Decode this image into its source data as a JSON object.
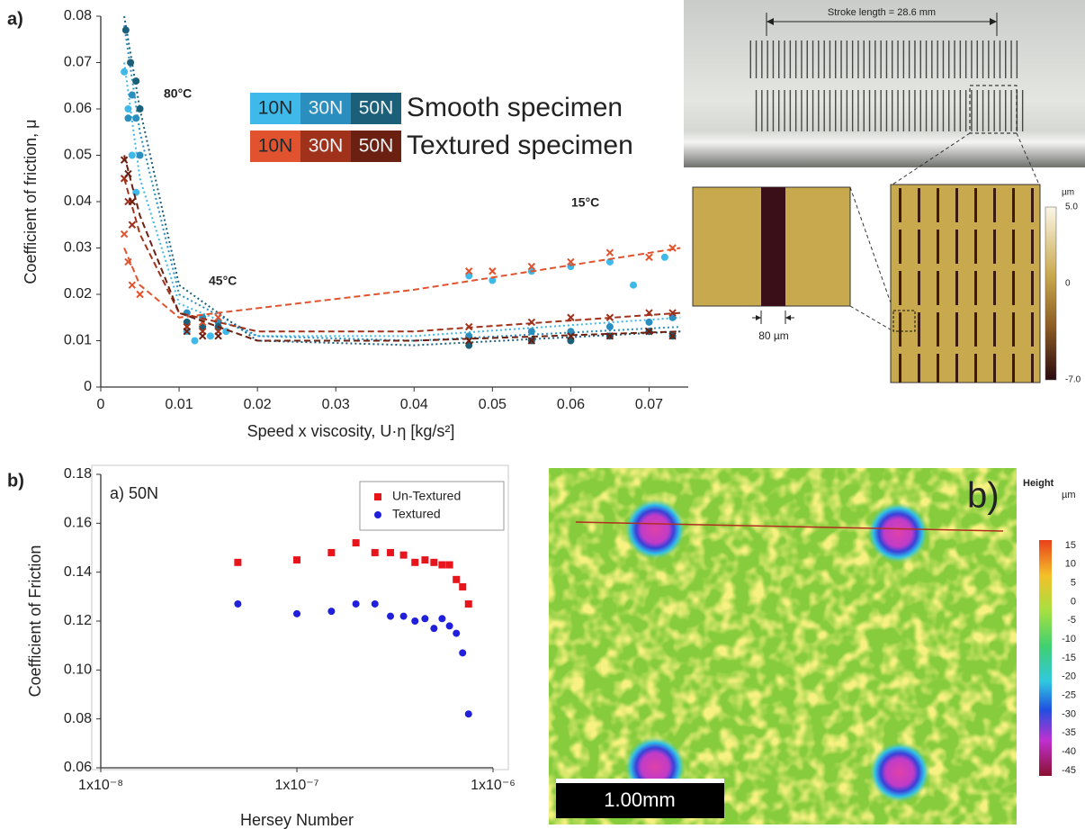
{
  "panel_labels": [
    "a)",
    "b)"
  ],
  "chart_data": [
    {
      "type": "scatter",
      "xlabel": "Speed x viscosity, U·η [kg/s²]",
      "ylabel": "Coefficient of friction, μ",
      "xlim": [
        0,
        0.075
      ],
      "ylim": [
        0,
        0.08
      ],
      "xticks": [
        0,
        0.01,
        0.02,
        0.03,
        0.04,
        0.05,
        0.06,
        0.07
      ],
      "yticks": [
        0,
        0.01,
        0.02,
        0.03,
        0.04,
        0.05,
        0.06,
        0.07,
        0.08
      ],
      "annotations": [
        "80°C",
        "45°C",
        "15°C"
      ],
      "series_groups": [
        {
          "name": "Smooth specimen",
          "marker": "circle",
          "fit_style": "dotted",
          "series": [
            {
              "name": "10N",
              "color": "#3fb8ea",
              "x": [
                0.003,
                0.0035,
                0.004,
                0.0045,
                0.011,
                0.012,
                0.014,
                0.016,
                0.047,
                0.05,
                0.055,
                0.06,
                0.065,
                0.068,
                0.072
              ],
              "values": [
                0.068,
                0.06,
                0.05,
                0.042,
                0.012,
                0.01,
                0.011,
                0.012,
                0.024,
                0.023,
                0.025,
                0.026,
                0.027,
                0.022,
                0.028
              ],
              "fit": {
                "x": [
                  0.003,
                  0.005,
                  0.01,
                  0.02,
                  0.04,
                  0.074
                ],
                "values": [
                  0.07,
                  0.045,
                  0.018,
                  0.011,
                  0.011,
                  0.015
                ]
              }
            },
            {
              "name": "30N",
              "color": "#2a8fbf",
              "x": [
                0.0035,
                0.004,
                0.0045,
                0.005,
                0.011,
                0.013,
                0.015,
                0.047,
                0.055,
                0.06,
                0.065,
                0.07,
                0.073
              ],
              "values": [
                0.058,
                0.063,
                0.058,
                0.05,
                0.016,
                0.015,
                0.014,
                0.011,
                0.012,
                0.012,
                0.013,
                0.014,
                0.015
              ],
              "fit": {
                "x": [
                  0.003,
                  0.005,
                  0.01,
                  0.02,
                  0.04,
                  0.074
                ],
                "values": [
                  0.078,
                  0.055,
                  0.02,
                  0.011,
                  0.01,
                  0.013
                ]
              }
            },
            {
              "name": "50N",
              "color": "#1c5f78",
              "x": [
                0.0032,
                0.0038,
                0.0045,
                0.005,
                0.011,
                0.013,
                0.015,
                0.047,
                0.055,
                0.06,
                0.065,
                0.07,
                0.073
              ],
              "values": [
                0.077,
                0.07,
                0.066,
                0.06,
                0.014,
                0.013,
                0.013,
                0.009,
                0.01,
                0.01,
                0.011,
                0.012,
                0.011
              ],
              "fit": {
                "x": [
                  0.003,
                  0.005,
                  0.01,
                  0.02,
                  0.04,
                  0.074
                ],
                "values": [
                  0.08,
                  0.06,
                  0.022,
                  0.01,
                  0.009,
                  0.012
                ]
              }
            }
          ]
        },
        {
          "name": "Textured specimen",
          "marker": "cross",
          "fit_style": "dashed",
          "series": [
            {
              "name": "10N",
              "color": "#e0532e",
              "x": [
                0.003,
                0.0035,
                0.004,
                0.005,
                0.011,
                0.013,
                0.015,
                0.047,
                0.05,
                0.055,
                0.06,
                0.065,
                0.07,
                0.073
              ],
              "values": [
                0.033,
                0.027,
                0.022,
                0.02,
                0.013,
                0.014,
                0.015,
                0.025,
                0.025,
                0.026,
                0.027,
                0.029,
                0.028,
                0.03
              ],
              "fit": {
                "x": [
                  0.003,
                  0.005,
                  0.01,
                  0.02,
                  0.04,
                  0.074
                ],
                "values": [
                  0.03,
                  0.022,
                  0.015,
                  0.017,
                  0.021,
                  0.03
                ]
              }
            },
            {
              "name": "30N",
              "color": "#a0321c",
              "x": [
                0.003,
                0.0035,
                0.004,
                0.011,
                0.013,
                0.015,
                0.047,
                0.055,
                0.06,
                0.065,
                0.07,
                0.073
              ],
              "values": [
                0.045,
                0.04,
                0.035,
                0.013,
                0.012,
                0.012,
                0.013,
                0.014,
                0.015,
                0.015,
                0.016,
                0.016
              ],
              "fit": {
                "x": [
                  0.003,
                  0.005,
                  0.01,
                  0.02,
                  0.04,
                  0.074
                ],
                "values": [
                  0.045,
                  0.033,
                  0.016,
                  0.012,
                  0.012,
                  0.016
                ]
              }
            },
            {
              "name": "50N",
              "color": "#6b2012",
              "x": [
                0.003,
                0.0035,
                0.004,
                0.011,
                0.013,
                0.015,
                0.047,
                0.055,
                0.06,
                0.065,
                0.07,
                0.073
              ],
              "values": [
                0.049,
                0.046,
                0.04,
                0.012,
                0.011,
                0.011,
                0.01,
                0.01,
                0.011,
                0.011,
                0.012,
                0.011
              ],
              "fit": {
                "x": [
                  0.003,
                  0.005,
                  0.01,
                  0.02,
                  0.04,
                  0.074
                ],
                "values": [
                  0.05,
                  0.037,
                  0.016,
                  0.01,
                  0.01,
                  0.012
                ]
              }
            }
          ]
        }
      ]
    },
    {
      "type": "scatter",
      "log_x": true,
      "frame": true,
      "legend": "top-right",
      "xlabel": "Hersey Number",
      "ylabel": "Coefficient of Friction",
      "annotations": [
        "a) 50N"
      ],
      "xlim": [
        1e-08,
        1e-06
      ],
      "ylim": [
        0.06,
        0.18
      ],
      "xticks": [
        {
          "value": 1e-08,
          "label": "1x10⁻⁸"
        },
        {
          "value": 1e-07,
          "label": "1x10⁻⁷"
        },
        {
          "value": 1e-06,
          "label": "1x10⁻⁶"
        }
      ],
      "yticks": [
        0.06,
        0.08,
        {
          "value": 0.1,
          "label": "0.10"
        },
        0.12,
        0.14,
        0.16,
        0.18
      ],
      "series_groups": [
        {
          "marker": "square",
          "series": [
            {
              "name": "Un-Textured",
              "color": "#e8141c",
              "x": [
                5e-08,
                1e-07,
                1.5e-07,
                2e-07,
                2.5e-07,
                3e-07,
                3.5e-07,
                4e-07,
                4.5e-07,
                5e-07,
                5.5e-07,
                6e-07,
                6.5e-07,
                7e-07,
                7.5e-07
              ],
              "values": [
                0.144,
                0.145,
                0.148,
                0.152,
                0.148,
                0.148,
                0.147,
                0.144,
                0.145,
                0.144,
                0.143,
                0.143,
                0.137,
                0.134,
                0.127
              ]
            }
          ]
        },
        {
          "marker": "circle",
          "series": [
            {
              "name": "Textured",
              "color": "#1f1fdc",
              "x": [
                5e-08,
                1e-07,
                1.5e-07,
                2e-07,
                2.5e-07,
                3e-07,
                3.5e-07,
                4e-07,
                4.5e-07,
                5e-07,
                5.5e-07,
                6e-07,
                6.5e-07,
                7e-07,
                7.5e-07
              ],
              "values": [
                0.127,
                0.123,
                0.124,
                0.127,
                0.127,
                0.122,
                0.122,
                0.12,
                0.121,
                0.117,
                0.121,
                0.118,
                0.115,
                0.107,
                0.082
              ]
            }
          ]
        }
      ]
    }
  ],
  "specimen_photo": {
    "dimension": "Stroke length = 28.6 mm"
  },
  "afm_zoom": {
    "width_label": "80 µm"
  },
  "afm_colorbar": {
    "unit": "µm",
    "labels": [
      "5.0",
      "0",
      "-7.0"
    ]
  },
  "height_map": {
    "panel_label": "b)",
    "title": "Height",
    "unit": "µm",
    "colorbar_labels": [
      15,
      10,
      5,
      0,
      -5,
      -10,
      -15,
      -20,
      -25,
      -30,
      -35,
      -40,
      -45
    ],
    "scale_bar": "1.00mm"
  }
}
